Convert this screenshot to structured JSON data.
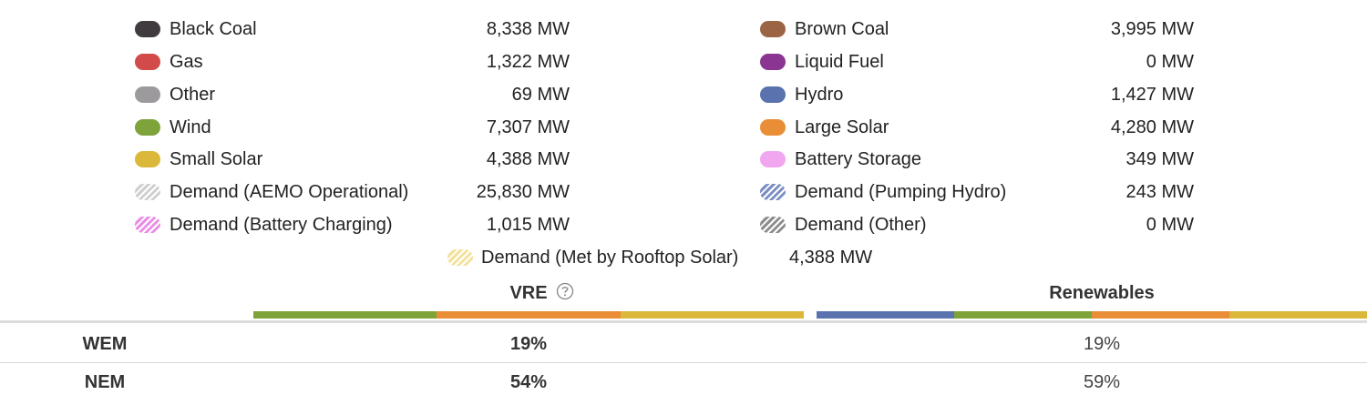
{
  "legend": {
    "left": [
      {
        "label": "Black Coal",
        "value": "8,338 MW",
        "color": "#3f3b3f",
        "swatch": "solid"
      },
      {
        "label": "Gas",
        "value": "1,322 MW",
        "color": "#d24a4a",
        "swatch": "solid"
      },
      {
        "label": "Other",
        "value": "69 MW",
        "color": "#9c9a9d",
        "swatch": "solid"
      },
      {
        "label": "Wind",
        "value": "7,307 MW",
        "color": "#7ea33b",
        "swatch": "solid"
      },
      {
        "label": "Small Solar",
        "value": "4,388 MW",
        "color": "#dbb73a",
        "swatch": "solid"
      },
      {
        "label": "Demand (AEMO Operational)",
        "value": "25,830 MW",
        "color": "#cfcfcf",
        "swatch": "hatched"
      },
      {
        "label": "Demand (Battery Charging)",
        "value": "1,015 MW",
        "color": "#e98ee6",
        "swatch": "hatched"
      }
    ],
    "right": [
      {
        "label": "Brown Coal",
        "value": "3,995 MW",
        "color": "#9b6445",
        "swatch": "solid"
      },
      {
        "label": "Liquid Fuel",
        "value": "0 MW",
        "color": "#8b3592",
        "swatch": "solid"
      },
      {
        "label": "Hydro",
        "value": "1,427 MW",
        "color": "#5a72ad",
        "swatch": "solid"
      },
      {
        "label": "Large Solar",
        "value": "4,280 MW",
        "color": "#e98d36",
        "swatch": "solid"
      },
      {
        "label": "Battery Storage",
        "value": "349 MW",
        "color": "#f0a7f0",
        "swatch": "solid"
      },
      {
        "label": "Demand (Pumping Hydro)",
        "value": "243 MW",
        "color": "#7b8fc4",
        "swatch": "hatched"
      },
      {
        "label": "Demand (Other)",
        "value": "0 MW",
        "color": "#8d8d8d",
        "swatch": "hatched"
      }
    ],
    "center": [
      {
        "label": "Demand (Met by Rooftop Solar)",
        "value": "4,388 MW",
        "color": "#f3e19a",
        "swatch": "hatched"
      }
    ]
  },
  "table": {
    "columns": [
      {
        "title": "VRE",
        "colors": [
          "#7ea33b",
          "#e98d36",
          "#dbb73a"
        ]
      },
      {
        "title": "Renewables",
        "colors": [
          "#5a72ad",
          "#7ea33b",
          "#e98d36",
          "#dbb73a"
        ]
      }
    ],
    "rows": [
      {
        "label": "WEM",
        "values": [
          "19%",
          "19%"
        ]
      },
      {
        "label": "NEM",
        "values": [
          "54%",
          "59%"
        ]
      }
    ]
  }
}
